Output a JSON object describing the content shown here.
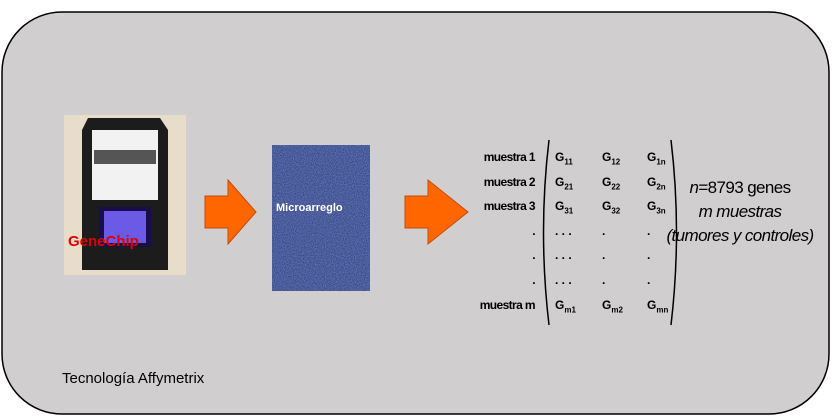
{
  "chip": {
    "label": "GeneChip"
  },
  "microarray": {
    "label": "Microarreglo"
  },
  "matrix": {
    "rows": [
      {
        "label": "muestra 1",
        "cells": [
          {
            "base": "G",
            "sub": "11"
          },
          {
            "base": "G",
            "sub": "12"
          },
          {
            "base": "G",
            "sub": "1n"
          }
        ]
      },
      {
        "label": "muestra 2",
        "cells": [
          {
            "base": "G",
            "sub": "21"
          },
          {
            "base": "G",
            "sub": "22"
          },
          {
            "base": "G",
            "sub": "2n"
          }
        ]
      },
      {
        "label": "muestra 3",
        "cells": [
          {
            "base": "G",
            "sub": "31"
          },
          {
            "base": "G",
            "sub": "32"
          },
          {
            "base": "G",
            "sub": "3n"
          }
        ]
      },
      {
        "label": ".",
        "cells": [
          {
            "base": ". . ."
          },
          {
            "base": "."
          },
          {
            "base": "."
          }
        ]
      },
      {
        "label": ".",
        "cells": [
          {
            "base": ". . ."
          },
          {
            "base": "."
          },
          {
            "base": "."
          }
        ]
      },
      {
        "label": ".",
        "cells": [
          {
            "base": ". . ."
          },
          {
            "base": "."
          },
          {
            "base": "."
          }
        ]
      },
      {
        "label": "muestra m",
        "cells": [
          {
            "base": "G",
            "sub": "m1"
          },
          {
            "base": "G",
            "sub": "m2"
          },
          {
            "base": "G",
            "sub": "mn"
          }
        ]
      }
    ]
  },
  "summary": {
    "genes": {
      "var": "n",
      "text": "=8793 genes"
    },
    "samples": "m muestras",
    "note": "(tumores y controles)"
  },
  "footer": "Tecnología Affymetrix"
}
